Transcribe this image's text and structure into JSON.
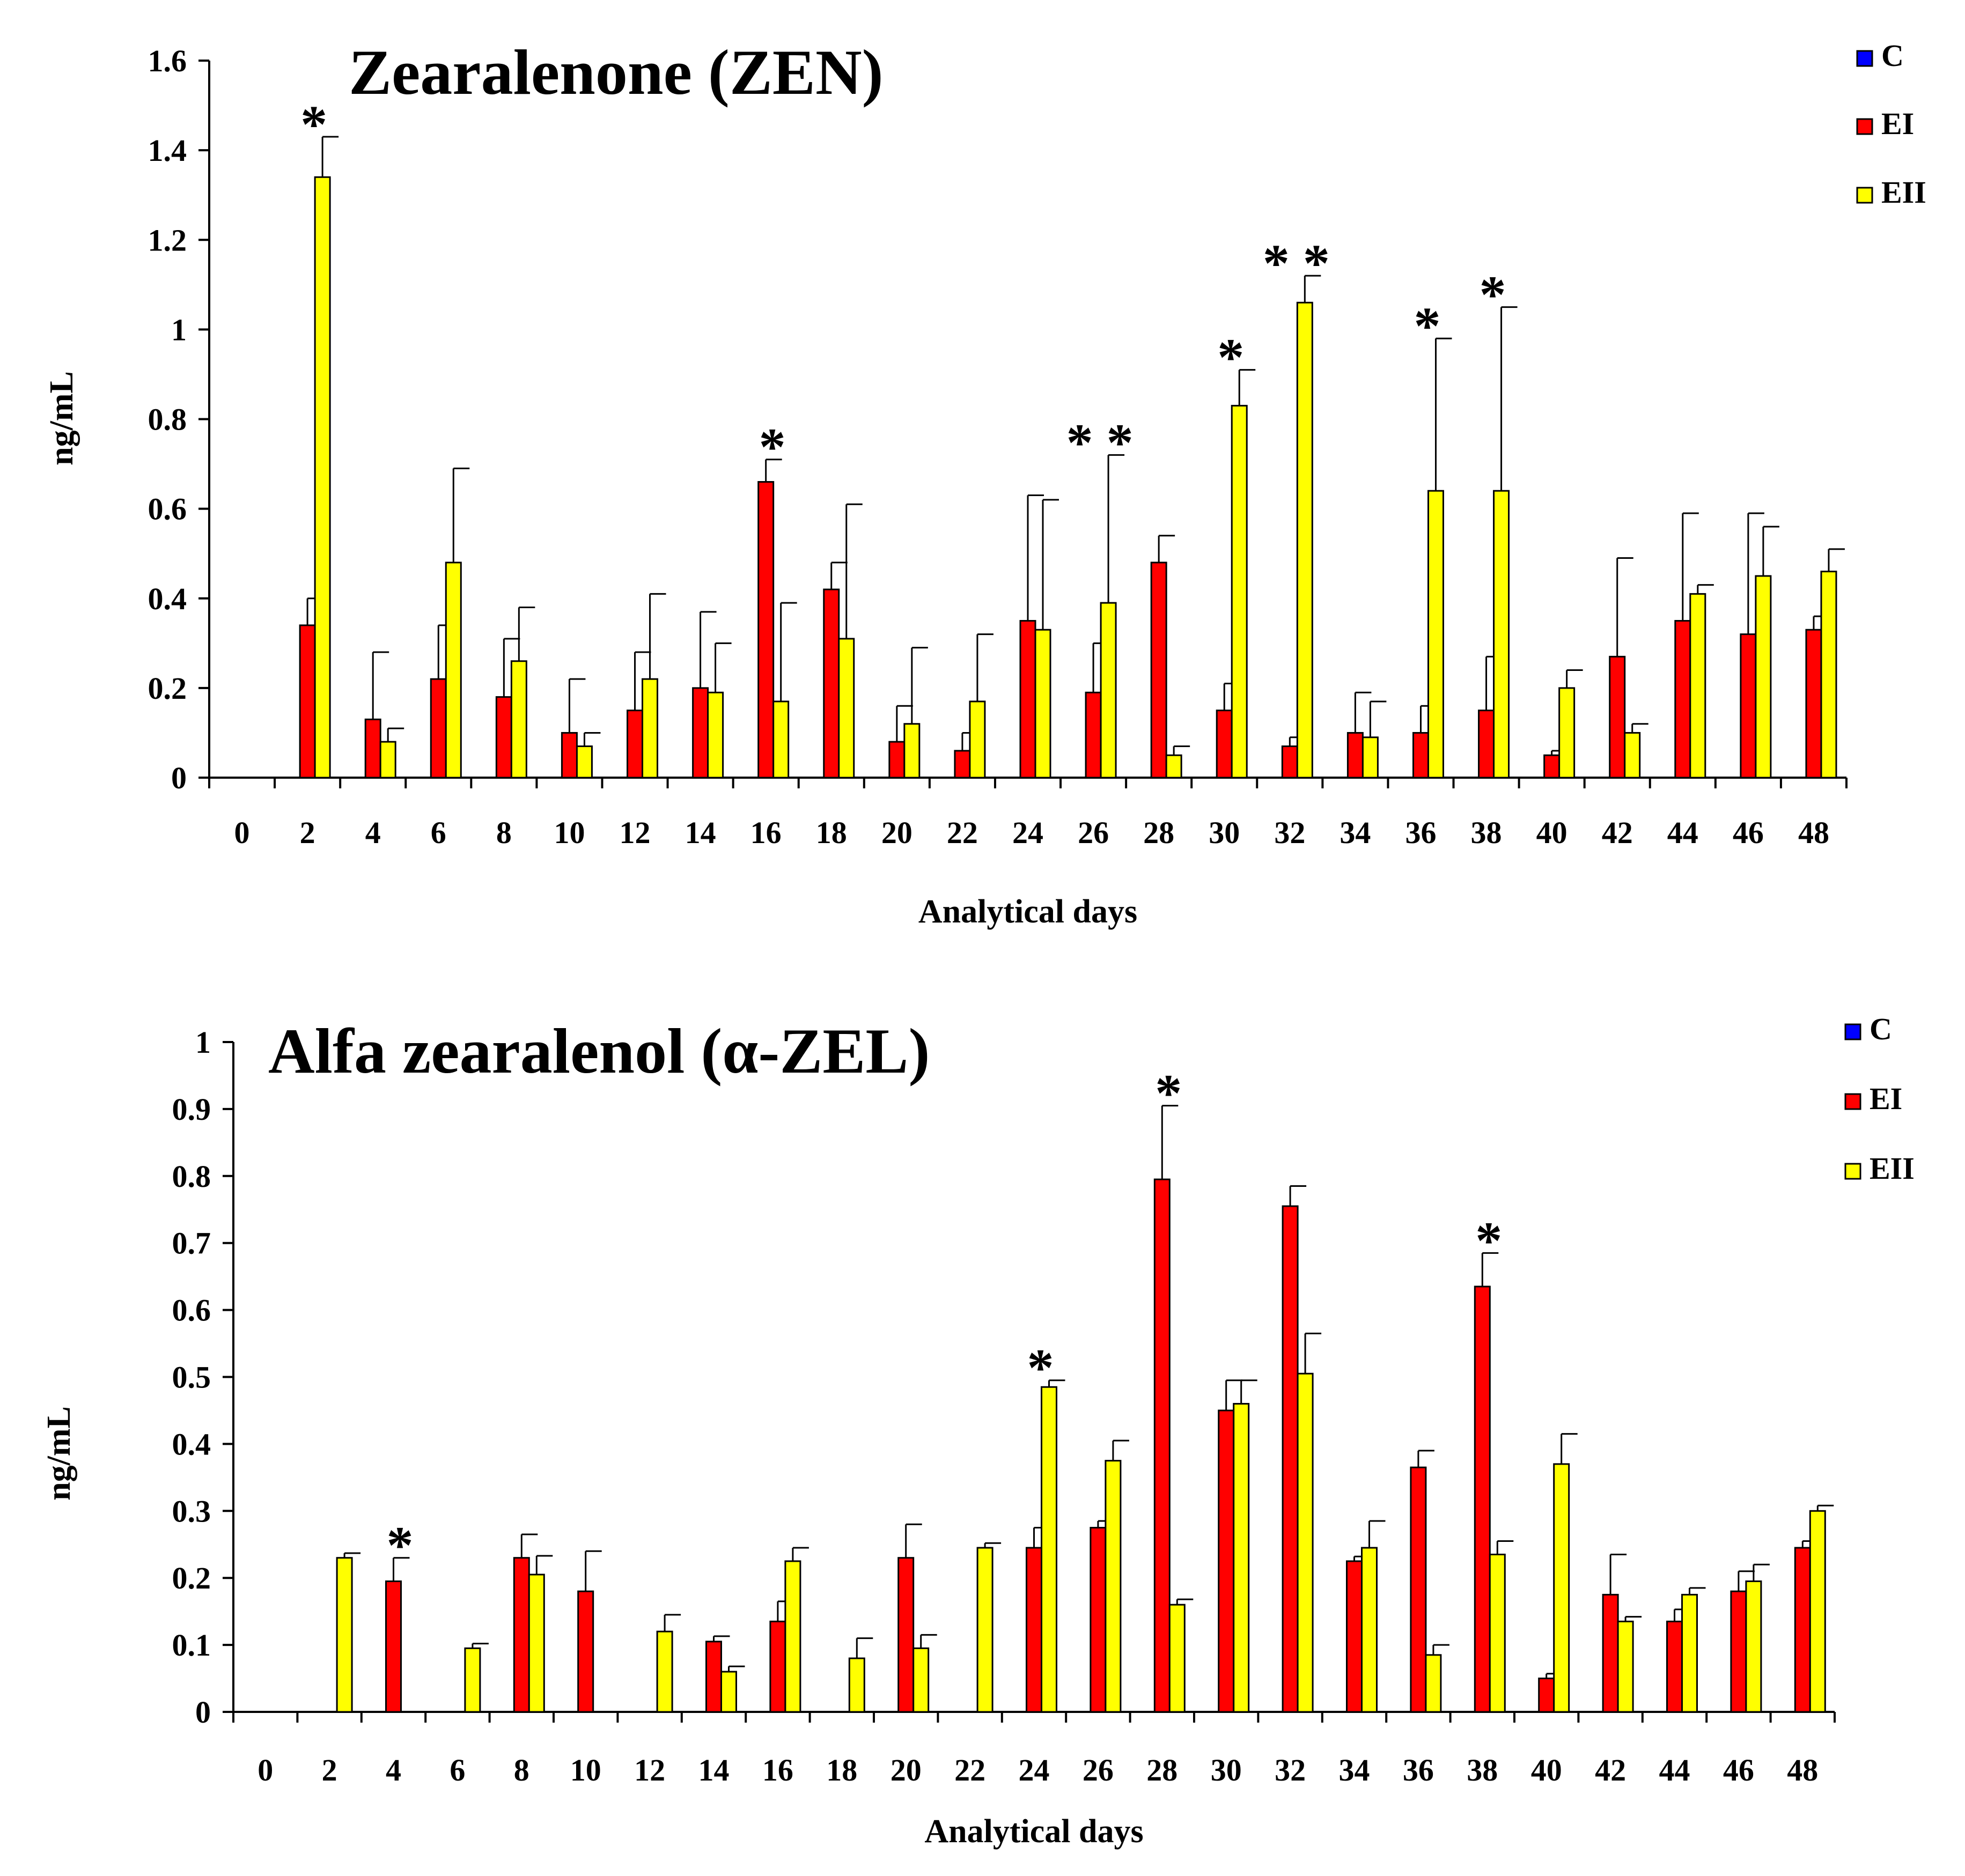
{
  "chart_data": [
    {
      "type": "bar",
      "title": "Zearalenone (ZEN)",
      "xlabel": "Analytical  days",
      "ylabel": "ng/mL",
      "ylim": [
        0,
        1.6
      ],
      "yticks": [
        "0",
        "0.2",
        "0.4",
        "0.6",
        "0.8",
        "1",
        "1.2",
        "1.4",
        "1.6"
      ],
      "categories": [
        "0",
        "2",
        "4",
        "6",
        "8",
        "10",
        "12",
        "14",
        "16",
        "18",
        "20",
        "22",
        "24",
        "26",
        "28",
        "30",
        "32",
        "34",
        "36",
        "38",
        "40",
        "42",
        "44",
        "46",
        "48"
      ],
      "legend": "top-right",
      "series": [
        {
          "name": "C",
          "color": "#0000ff",
          "values": [
            0,
            0,
            0,
            0,
            0,
            0,
            0,
            0,
            0,
            0,
            0,
            0,
            0,
            0,
            0,
            0,
            0,
            0,
            0,
            0,
            0,
            0,
            0,
            0,
            0
          ],
          "errors": [
            0,
            0,
            0,
            0,
            0,
            0,
            0,
            0,
            0,
            0,
            0,
            0,
            0,
            0,
            0,
            0,
            0,
            0,
            0,
            0,
            0,
            0,
            0,
            0,
            0
          ]
        },
        {
          "name": "EI",
          "color": "#ff0000",
          "values": [
            0,
            0.34,
            0.13,
            0.22,
            0.18,
            0.1,
            0.15,
            0.2,
            0.66,
            0.42,
            0.08,
            0.06,
            0.35,
            0.19,
            0.48,
            0.15,
            0.07,
            0.1,
            0.1,
            0.15,
            0.05,
            0.27,
            0.35,
            0.32,
            0.33
          ],
          "errors": [
            0,
            0.06,
            0.15,
            0.12,
            0.13,
            0.12,
            0.13,
            0.17,
            0.05,
            0.06,
            0.08,
            0.04,
            0.28,
            0.11,
            0.06,
            0.06,
            0.02,
            0.09,
            0.06,
            0.12,
            0.01,
            0.22,
            0.24,
            0.27,
            0.03
          ]
        },
        {
          "name": "EII",
          "color": "#ffff00",
          "values": [
            0,
            1.34,
            0.08,
            0.48,
            0.26,
            0.07,
            0.22,
            0.19,
            0.17,
            0.31,
            0.12,
            0.17,
            0.33,
            0.39,
            0.05,
            0.83,
            1.06,
            0.09,
            0.64,
            0.64,
            0.2,
            0.1,
            0.41,
            0.45,
            0.46
          ],
          "errors": [
            0,
            0.09,
            0.03,
            0.21,
            0.12,
            0.03,
            0.19,
            0.11,
            0.22,
            0.3,
            0.17,
            0.15,
            0.29,
            0.33,
            0.02,
            0.08,
            0.06,
            0.08,
            0.34,
            0.41,
            0.04,
            0.02,
            0.02,
            0.11,
            0.05
          ]
        }
      ],
      "annotations": [
        {
          "category": "2",
          "text": "*"
        },
        {
          "category": "16",
          "text": "*"
        },
        {
          "category": "26",
          "text": "* *"
        },
        {
          "category": "30",
          "text": "*"
        },
        {
          "category": "32",
          "text": "* *"
        },
        {
          "category": "36",
          "text": "*"
        },
        {
          "category": "38",
          "text": "*"
        }
      ]
    },
    {
      "type": "bar",
      "title": "Alfa zearalenol (α-ZEL)",
      "xlabel": "Analytical  days",
      "ylabel": "ng/mL",
      "ylim": [
        0,
        1
      ],
      "yticks": [
        "0",
        "0.1",
        "0.2",
        "0.3",
        "0.4",
        "0.5",
        "0.6",
        "0.7",
        "0.8",
        "0.9",
        "1"
      ],
      "categories": [
        "0",
        "2",
        "4",
        "6",
        "8",
        "10",
        "12",
        "14",
        "16",
        "18",
        "20",
        "22",
        "24",
        "26",
        "28",
        "30",
        "32",
        "34",
        "36",
        "38",
        "40",
        "42",
        "44",
        "46",
        "48"
      ],
      "legend": "top-right",
      "series": [
        {
          "name": "C",
          "color": "#0000ff",
          "values": [
            0,
            0,
            0,
            0,
            0,
            0,
            0,
            0,
            0,
            0,
            0,
            0,
            0,
            0,
            0,
            0,
            0,
            0,
            0,
            0,
            0,
            0,
            0,
            0,
            0
          ],
          "errors": [
            0,
            0,
            0,
            0,
            0,
            0,
            0,
            0,
            0,
            0,
            0,
            0,
            0,
            0,
            0,
            0,
            0,
            0,
            0,
            0,
            0,
            0,
            0,
            0,
            0
          ]
        },
        {
          "name": "EI",
          "color": "#ff0000",
          "values": [
            0,
            0,
            0.195,
            0,
            0.23,
            0.18,
            0,
            0.105,
            0.135,
            0,
            0.23,
            0,
            0.245,
            0.275,
            0.795,
            0.45,
            0.755,
            0.225,
            0.365,
            0.635,
            0.05,
            0.175,
            0.135,
            0.18,
            0.245
          ],
          "errors": [
            0,
            0,
            0.035,
            0,
            0.035,
            0.06,
            0,
            0.008,
            0.03,
            0,
            0.05,
            0,
            0.03,
            0.01,
            0.11,
            0.045,
            0.03,
            0.007,
            0.025,
            0.05,
            0.007,
            0.06,
            0.018,
            0.03,
            0.01
          ]
        },
        {
          "name": "EII",
          "color": "#ffff00",
          "values": [
            0,
            0.23,
            0,
            0.095,
            0.205,
            0,
            0.12,
            0.06,
            0.225,
            0.08,
            0.095,
            0.245,
            0.485,
            0.375,
            0.16,
            0.46,
            0.505,
            0.245,
            0.085,
            0.235,
            0.37,
            0.135,
            0.175,
            0.195,
            0.3
          ],
          "errors": [
            0,
            0.007,
            0,
            0.007,
            0.028,
            0,
            0.025,
            0.008,
            0.02,
            0.03,
            0.02,
            0.007,
            0.01,
            0.03,
            0.008,
            0.035,
            0.06,
            0.04,
            0.015,
            0.02,
            0.045,
            0.007,
            0.01,
            0.025,
            0.008
          ]
        }
      ],
      "annotations": [
        {
          "category": "4",
          "text": "*"
        },
        {
          "category": "24",
          "text": "*"
        },
        {
          "category": "28",
          "text": "*"
        },
        {
          "category": "38",
          "text": "*"
        }
      ]
    }
  ]
}
